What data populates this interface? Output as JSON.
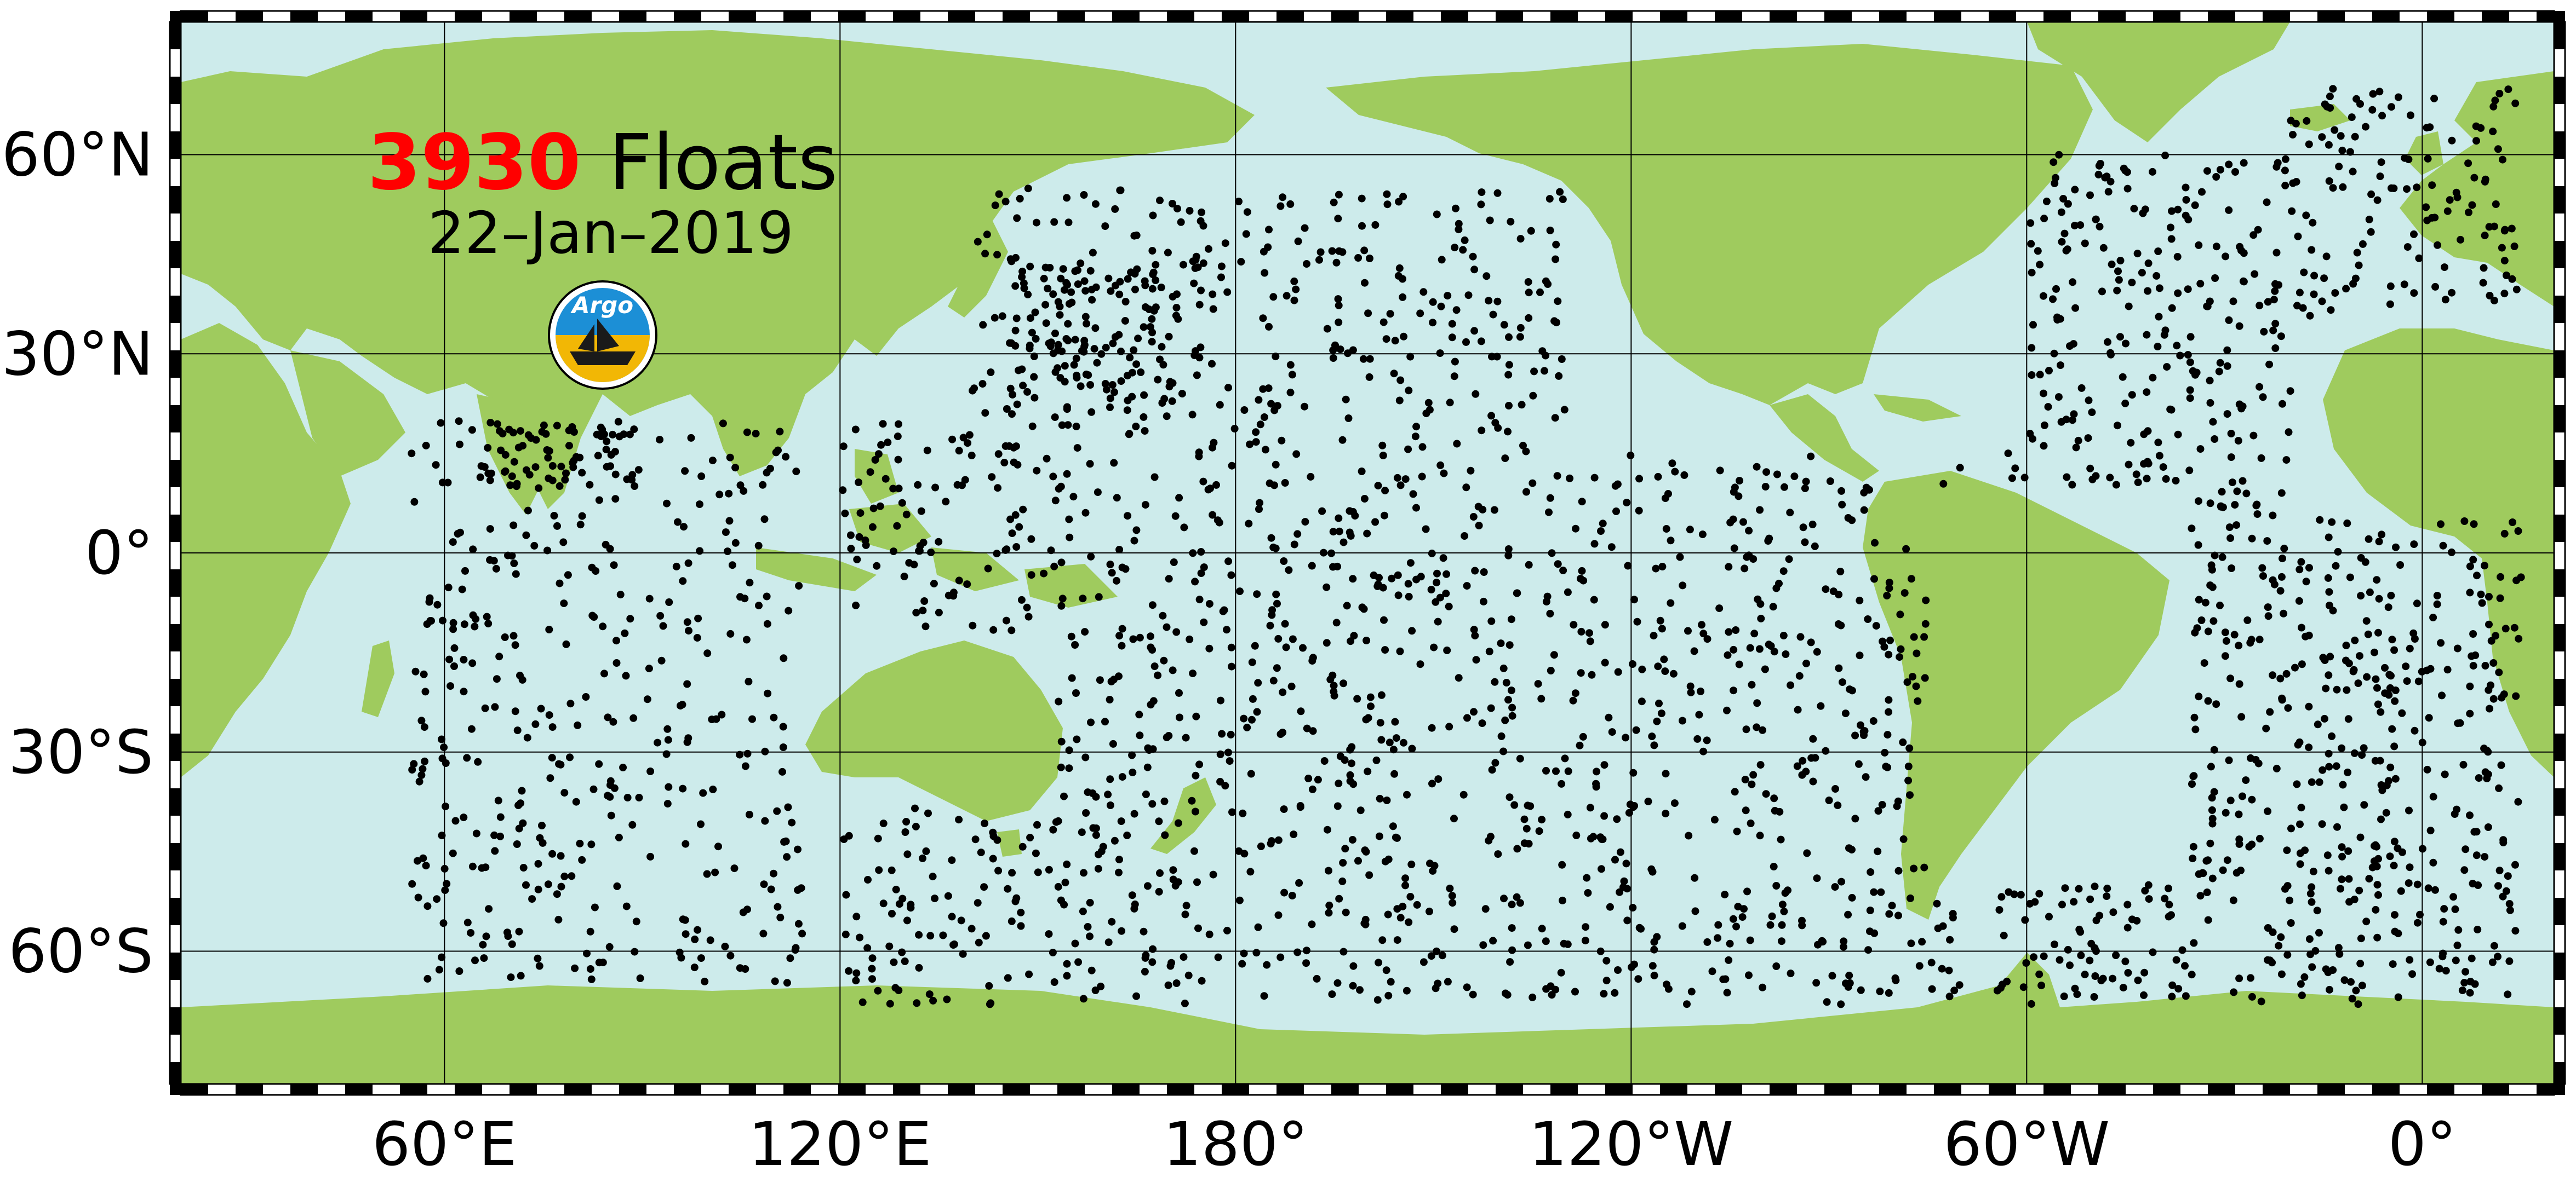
{
  "title": {
    "count": "3930",
    "word": "Floats",
    "date": "22–Jan–2019"
  },
  "logo": {
    "text": "Argo",
    "icon": "argo-ship-logo-icon"
  },
  "colors": {
    "ocean": "#cdebeb",
    "land": "#9fcb5e",
    "float": "#000000",
    "count": "#ff0000"
  },
  "lat_labels": [
    "60°N",
    "30°N",
    "0°",
    "30°S",
    "60°S"
  ],
  "lon_labels": [
    "60°E",
    "120°E",
    "180°",
    "120°W",
    "60°W",
    "0°"
  ],
  "map": {
    "projection": "equirectangular",
    "lon_range": [
      20,
      380
    ],
    "lat_range": [
      -80,
      80
    ],
    "graticule_step_deg": 30,
    "float_count_drawn_note": "",
    "lat_ticks": [
      60,
      30,
      0,
      -30,
      -60
    ],
    "lon_ticks": [
      60,
      120,
      180,
      240,
      300,
      360
    ]
  }
}
